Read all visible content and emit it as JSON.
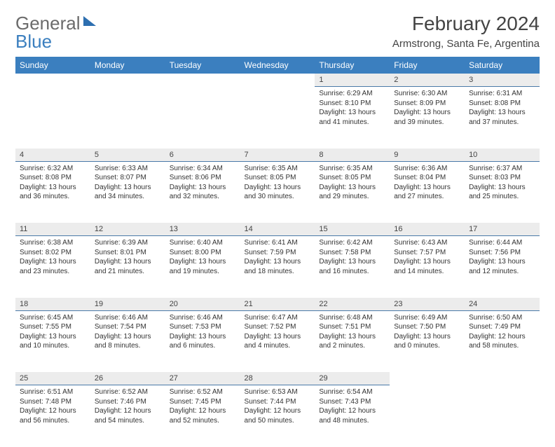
{
  "brand": {
    "part1": "General",
    "part2": "Blue"
  },
  "title": "February 2024",
  "location": "Armstrong, Santa Fe, Argentina",
  "colors": {
    "header_bg": "#3b7fbf",
    "header_text": "#ffffff",
    "daynum_bg": "#ececec",
    "daynum_border": "#4a7aa8",
    "text": "#333333",
    "brand_grey": "#6b6b6b",
    "brand_blue": "#3b7fbf"
  },
  "weekdays": [
    "Sunday",
    "Monday",
    "Tuesday",
    "Wednesday",
    "Thursday",
    "Friday",
    "Saturday"
  ],
  "weeks": [
    [
      null,
      null,
      null,
      null,
      {
        "n": "1",
        "sr": "Sunrise: 6:29 AM",
        "ss": "Sunset: 8:10 PM",
        "d1": "Daylight: 13 hours",
        "d2": "and 41 minutes."
      },
      {
        "n": "2",
        "sr": "Sunrise: 6:30 AM",
        "ss": "Sunset: 8:09 PM",
        "d1": "Daylight: 13 hours",
        "d2": "and 39 minutes."
      },
      {
        "n": "3",
        "sr": "Sunrise: 6:31 AM",
        "ss": "Sunset: 8:08 PM",
        "d1": "Daylight: 13 hours",
        "d2": "and 37 minutes."
      }
    ],
    [
      {
        "n": "4",
        "sr": "Sunrise: 6:32 AM",
        "ss": "Sunset: 8:08 PM",
        "d1": "Daylight: 13 hours",
        "d2": "and 36 minutes."
      },
      {
        "n": "5",
        "sr": "Sunrise: 6:33 AM",
        "ss": "Sunset: 8:07 PM",
        "d1": "Daylight: 13 hours",
        "d2": "and 34 minutes."
      },
      {
        "n": "6",
        "sr": "Sunrise: 6:34 AM",
        "ss": "Sunset: 8:06 PM",
        "d1": "Daylight: 13 hours",
        "d2": "and 32 minutes."
      },
      {
        "n": "7",
        "sr": "Sunrise: 6:35 AM",
        "ss": "Sunset: 8:05 PM",
        "d1": "Daylight: 13 hours",
        "d2": "and 30 minutes."
      },
      {
        "n": "8",
        "sr": "Sunrise: 6:35 AM",
        "ss": "Sunset: 8:05 PM",
        "d1": "Daylight: 13 hours",
        "d2": "and 29 minutes."
      },
      {
        "n": "9",
        "sr": "Sunrise: 6:36 AM",
        "ss": "Sunset: 8:04 PM",
        "d1": "Daylight: 13 hours",
        "d2": "and 27 minutes."
      },
      {
        "n": "10",
        "sr": "Sunrise: 6:37 AM",
        "ss": "Sunset: 8:03 PM",
        "d1": "Daylight: 13 hours",
        "d2": "and 25 minutes."
      }
    ],
    [
      {
        "n": "11",
        "sr": "Sunrise: 6:38 AM",
        "ss": "Sunset: 8:02 PM",
        "d1": "Daylight: 13 hours",
        "d2": "and 23 minutes."
      },
      {
        "n": "12",
        "sr": "Sunrise: 6:39 AM",
        "ss": "Sunset: 8:01 PM",
        "d1": "Daylight: 13 hours",
        "d2": "and 21 minutes."
      },
      {
        "n": "13",
        "sr": "Sunrise: 6:40 AM",
        "ss": "Sunset: 8:00 PM",
        "d1": "Daylight: 13 hours",
        "d2": "and 19 minutes."
      },
      {
        "n": "14",
        "sr": "Sunrise: 6:41 AM",
        "ss": "Sunset: 7:59 PM",
        "d1": "Daylight: 13 hours",
        "d2": "and 18 minutes."
      },
      {
        "n": "15",
        "sr": "Sunrise: 6:42 AM",
        "ss": "Sunset: 7:58 PM",
        "d1": "Daylight: 13 hours",
        "d2": "and 16 minutes."
      },
      {
        "n": "16",
        "sr": "Sunrise: 6:43 AM",
        "ss": "Sunset: 7:57 PM",
        "d1": "Daylight: 13 hours",
        "d2": "and 14 minutes."
      },
      {
        "n": "17",
        "sr": "Sunrise: 6:44 AM",
        "ss": "Sunset: 7:56 PM",
        "d1": "Daylight: 13 hours",
        "d2": "and 12 minutes."
      }
    ],
    [
      {
        "n": "18",
        "sr": "Sunrise: 6:45 AM",
        "ss": "Sunset: 7:55 PM",
        "d1": "Daylight: 13 hours",
        "d2": "and 10 minutes."
      },
      {
        "n": "19",
        "sr": "Sunrise: 6:46 AM",
        "ss": "Sunset: 7:54 PM",
        "d1": "Daylight: 13 hours",
        "d2": "and 8 minutes."
      },
      {
        "n": "20",
        "sr": "Sunrise: 6:46 AM",
        "ss": "Sunset: 7:53 PM",
        "d1": "Daylight: 13 hours",
        "d2": "and 6 minutes."
      },
      {
        "n": "21",
        "sr": "Sunrise: 6:47 AM",
        "ss": "Sunset: 7:52 PM",
        "d1": "Daylight: 13 hours",
        "d2": "and 4 minutes."
      },
      {
        "n": "22",
        "sr": "Sunrise: 6:48 AM",
        "ss": "Sunset: 7:51 PM",
        "d1": "Daylight: 13 hours",
        "d2": "and 2 minutes."
      },
      {
        "n": "23",
        "sr": "Sunrise: 6:49 AM",
        "ss": "Sunset: 7:50 PM",
        "d1": "Daylight: 13 hours",
        "d2": "and 0 minutes."
      },
      {
        "n": "24",
        "sr": "Sunrise: 6:50 AM",
        "ss": "Sunset: 7:49 PM",
        "d1": "Daylight: 12 hours",
        "d2": "and 58 minutes."
      }
    ],
    [
      {
        "n": "25",
        "sr": "Sunrise: 6:51 AM",
        "ss": "Sunset: 7:48 PM",
        "d1": "Daylight: 12 hours",
        "d2": "and 56 minutes."
      },
      {
        "n": "26",
        "sr": "Sunrise: 6:52 AM",
        "ss": "Sunset: 7:46 PM",
        "d1": "Daylight: 12 hours",
        "d2": "and 54 minutes."
      },
      {
        "n": "27",
        "sr": "Sunrise: 6:52 AM",
        "ss": "Sunset: 7:45 PM",
        "d1": "Daylight: 12 hours",
        "d2": "and 52 minutes."
      },
      {
        "n": "28",
        "sr": "Sunrise: 6:53 AM",
        "ss": "Sunset: 7:44 PM",
        "d1": "Daylight: 12 hours",
        "d2": "and 50 minutes."
      },
      {
        "n": "29",
        "sr": "Sunrise: 6:54 AM",
        "ss": "Sunset: 7:43 PM",
        "d1": "Daylight: 12 hours",
        "d2": "and 48 minutes."
      },
      null,
      null
    ]
  ]
}
